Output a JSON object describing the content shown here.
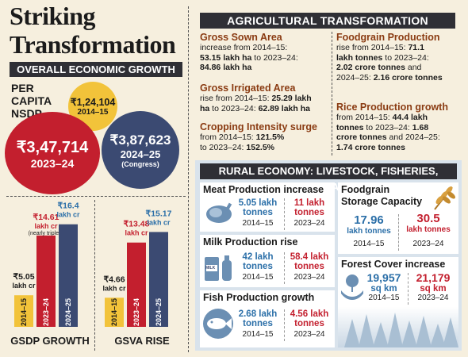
{
  "title": "Striking Transformation",
  "left": {
    "header": "OVERALL ECONOMIC GROWTH",
    "per_capita_label": "PER CAPITA NSDP",
    "circles": [
      {
        "value": "₹1,24,104",
        "year": "2014–15",
        "note": ""
      },
      {
        "value": "₹3,47,714",
        "year": "2023–24",
        "note": ""
      },
      {
        "value": "₹3,87,623",
        "year": "2024–25",
        "note": "(Congress)"
      }
    ]
  },
  "chart_data": [
    {
      "type": "bar",
      "title": "GSDP GROWTH",
      "categories": [
        "2014–15",
        "2023–24",
        "2024–25"
      ],
      "values": [
        5.05,
        14.61,
        16.4
      ],
      "value_labels": [
        "₹5.05",
        "₹14.61",
        "₹16.4"
      ],
      "unit_label": "lakh cr",
      "annotation": "(nearly tripled)",
      "colors": [
        "#f2c33a",
        "#c31f2e",
        "#3b4a72"
      ]
    },
    {
      "type": "bar",
      "title": "GSVA RISE",
      "categories": [
        "2014–15",
        "2023–24",
        "2024–25"
      ],
      "values": [
        4.66,
        13.48,
        15.17
      ],
      "value_labels": [
        "₹4.66",
        "₹13.48",
        "₹15.17"
      ],
      "unit_label": "lakh cr",
      "annotation": "",
      "colors": [
        "#f2c33a",
        "#c31f2e",
        "#3b4a72"
      ]
    }
  ],
  "agri": {
    "header": "AGRICULTURAL TRANSFORMATION",
    "items": [
      {
        "heading": "Gross Sown Area",
        "line1": "increase from 2014–15:",
        "line2b": "53.15 lakh ha",
        "line2": " to 2023–24:",
        "line3b": "84.86 lakh ha",
        "line3": ""
      },
      {
        "heading": "Gross Irrigated Area",
        "line1": "rise from 2014–15: ",
        "line1b": "25.29 lakh",
        "line2b": "ha",
        "line2": " to 2023–24: ",
        "line2b2": "62.89 lakh ha"
      },
      {
        "heading": "Cropping Intensity surge",
        "line1": "from 2014–15: ",
        "line1b": "121.5%",
        "line2": "to 2023–24: ",
        "line2b": "152.5%"
      },
      {
        "heading": "Foodgrain Production",
        "line1": "rise from 2014–15: ",
        "line1b": "71.1",
        "line2b": "lakh tonnes",
        "line2": " to 2023–24:",
        "line3b": "2.02 crore tonnes",
        "line3": " and",
        "line4": "2024–25: ",
        "line4b": "2.16 crore tonnes"
      },
      {
        "heading": "Rice Production growth",
        "line1": "from 2014–15: ",
        "line1b": "44.4 lakh",
        "line2b": "tonnes",
        "line2": " to 2023–24: ",
        "line2b2": "1.68",
        "line3b": "crore tonnes",
        "line3": " and 2024–25:",
        "line4b": "1.74 crore tonnes"
      }
    ]
  },
  "rural": {
    "header": "RURAL ECONOMY: LIVESTOCK, FISHERIES, STORAGE",
    "meat": {
      "title": "Meat Production increase",
      "v1a": "5.05 lakh",
      "v1b": "tonnes",
      "y1": "2014–15",
      "v2a": "11 lakh",
      "v2b": "tonnes",
      "y2": "2023–24"
    },
    "milk": {
      "title": "Milk Production rise",
      "v1a": "42 lakh",
      "v1b": "tonnes",
      "y1": "2014–15",
      "v2a": "58.4 lakh",
      "v2b": "tonnes",
      "y2": "2023–24",
      "icon_text": "MILK"
    },
    "fish": {
      "title": "Fish Production growth",
      "v1a": "2.68 lakh",
      "v1b": "tonnes",
      "y1": "2014–15",
      "v2a": "4.56 lakh",
      "v2b": "tonnes",
      "y2": "2023–24"
    },
    "storage": {
      "title1": "Foodgrain",
      "title2": "Storage Capacity",
      "v1a": "17.96",
      "v1b": "lakh tonnes",
      "y1": "2014–15",
      "v2a": "30.5",
      "v2b": "lakh tonnes",
      "y2": "2023–24"
    },
    "forest": {
      "title": "Forest Cover increase",
      "v1a": "19,957",
      "v1b": "sq km",
      "y1": "2014–15",
      "v2a": "21,179",
      "v2b": "sq km",
      "y2": "2023–24"
    }
  },
  "colors": {
    "red": "#c31f2e",
    "blue": "#2b6fa8",
    "navy": "#3b4a72",
    "yellow": "#f2c33a",
    "dark": "#2f2f35",
    "brown": "#8a3b12"
  }
}
